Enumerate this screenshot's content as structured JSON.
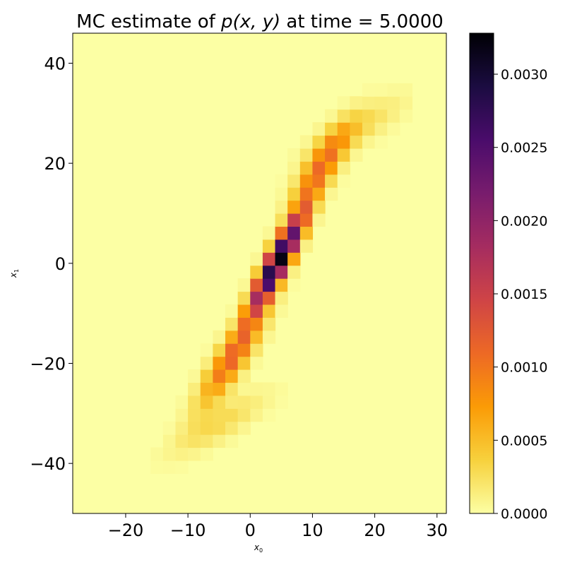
{
  "chart_data": {
    "type": "heatmap",
    "title_prefix": "MC estimate of ",
    "title_math": "p(x, y)",
    "title_suffix": " at time = 5.0000",
    "xlabel": "x",
    "xlabel_sub": "0",
    "ylabel": "x",
    "ylabel_sub": "1",
    "xlim": [
      -28.5,
      31.5
    ],
    "ylim": [
      -50,
      46
    ],
    "xticks": [
      -20,
      -10,
      0,
      10,
      20,
      30
    ],
    "yticks": [
      -40,
      -20,
      0,
      20,
      40
    ],
    "xtick_labels": [
      "−20",
      "−10",
      "0",
      "10",
      "20",
      "30"
    ],
    "ytick_labels": [
      "−40",
      "−20",
      "0",
      "20",
      "40"
    ],
    "colormap": "inferno_r",
    "color_stops": [
      "#fcffa4",
      "#f7d13d",
      "#fb9b06",
      "#ed6925",
      "#cf4446",
      "#a52c60",
      "#781c6d",
      "#4a0c6b",
      "#1b0c41",
      "#000004"
    ],
    "vmin": 0,
    "vmax": 0.00328,
    "colorbar_ticks": [
      0,
      0.0005,
      0.001,
      0.0015,
      0.002,
      0.0025,
      0.003
    ],
    "colorbar_tick_labels": [
      "0.0000",
      "0.0005",
      "0.0010",
      "0.0015",
      "0.0020",
      "0.0025",
      "0.0030"
    ],
    "grid": false,
    "cell_width": 2,
    "cell_height": 2.6,
    "density_model": {
      "description": "Correlated elongated Gaussian density along the line x1 = 2.45*x0 - 10, with two lobes",
      "components": [
        {
          "x0": 4.5,
          "x1": 0.5,
          "sigma_along": 7.5,
          "sigma_across": 1.2,
          "slope": 2.45,
          "peak": 0.0033
        },
        {
          "x0": -3.0,
          "x1": -19.0,
          "sigma_along": 7.0,
          "sigma_across": 1.6,
          "slope": 2.0,
          "peak": 0.0011
        },
        {
          "x0": 11.5,
          "x1": 19.5,
          "sigma_along": 6.0,
          "sigma_across": 1.6,
          "slope": 2.0,
          "peak": 0.001
        },
        {
          "x0": -5.0,
          "x1": -32.0,
          "sigma_along": 6.0,
          "sigma_across": 2.0,
          "slope": 0.8,
          "peak": 0.0003
        },
        {
          "x0": 17.0,
          "x1": 27.0,
          "sigma_along": 6.0,
          "sigma_across": 2.0,
          "slope": 0.8,
          "peak": 0.0003
        }
      ]
    }
  }
}
